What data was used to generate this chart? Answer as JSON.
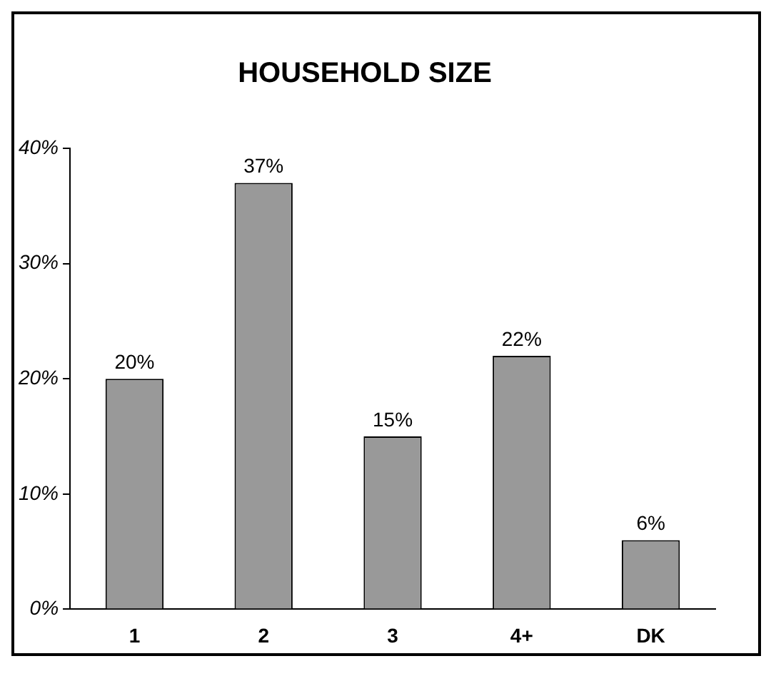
{
  "chart_data": {
    "type": "bar",
    "title": "HOUSEHOLD SIZE",
    "categories": [
      "1",
      "2",
      "3",
      "4+",
      "DK"
    ],
    "values": [
      20,
      37,
      15,
      22,
      6
    ],
    "value_labels": [
      "20%",
      "37%",
      "15%",
      "22%",
      "6%"
    ],
    "color": "#999999",
    "ylim": [
      0,
      40
    ],
    "yticks": [
      {
        "value": 0,
        "label": "0%"
      },
      {
        "value": 10,
        "label": "10%"
      },
      {
        "value": 20,
        "label": "20%"
      },
      {
        "value": 30,
        "label": "30%"
      },
      {
        "value": 40,
        "label": "40%"
      }
    ],
    "grid": false,
    "legend": false
  }
}
